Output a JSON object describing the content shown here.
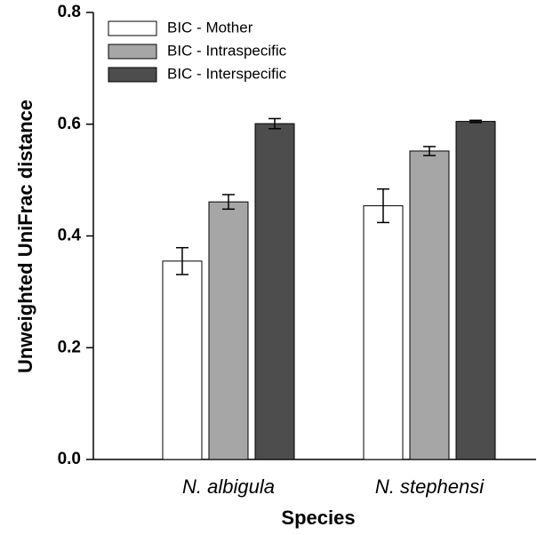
{
  "chart_data": {
    "type": "bar",
    "xlabel": "Species",
    "ylabel": "Unweighted UniFrac distance",
    "categories": [
      "N. albigula",
      "N. stephensi"
    ],
    "series": [
      {
        "name": "BIC - Mother",
        "color": "#ffffff",
        "values": [
          0.355,
          0.454
        ],
        "errors": [
          0.024,
          0.03
        ]
      },
      {
        "name": "BIC - Intraspecific",
        "color": "#a6a6a6",
        "values": [
          0.461,
          0.552
        ],
        "errors": [
          0.013,
          0.008
        ]
      },
      {
        "name": "BIC - Interspecific",
        "color": "#4d4d4d",
        "values": [
          0.601,
          0.605
        ],
        "errors": [
          0.009,
          0.002
        ]
      }
    ],
    "ylim": [
      0,
      0.8
    ],
    "yticks": [
      {
        "value": 0,
        "label": "0.0"
      },
      0.2,
      0.4,
      0.6,
      0.8
    ],
    "legend": "upper left"
  }
}
